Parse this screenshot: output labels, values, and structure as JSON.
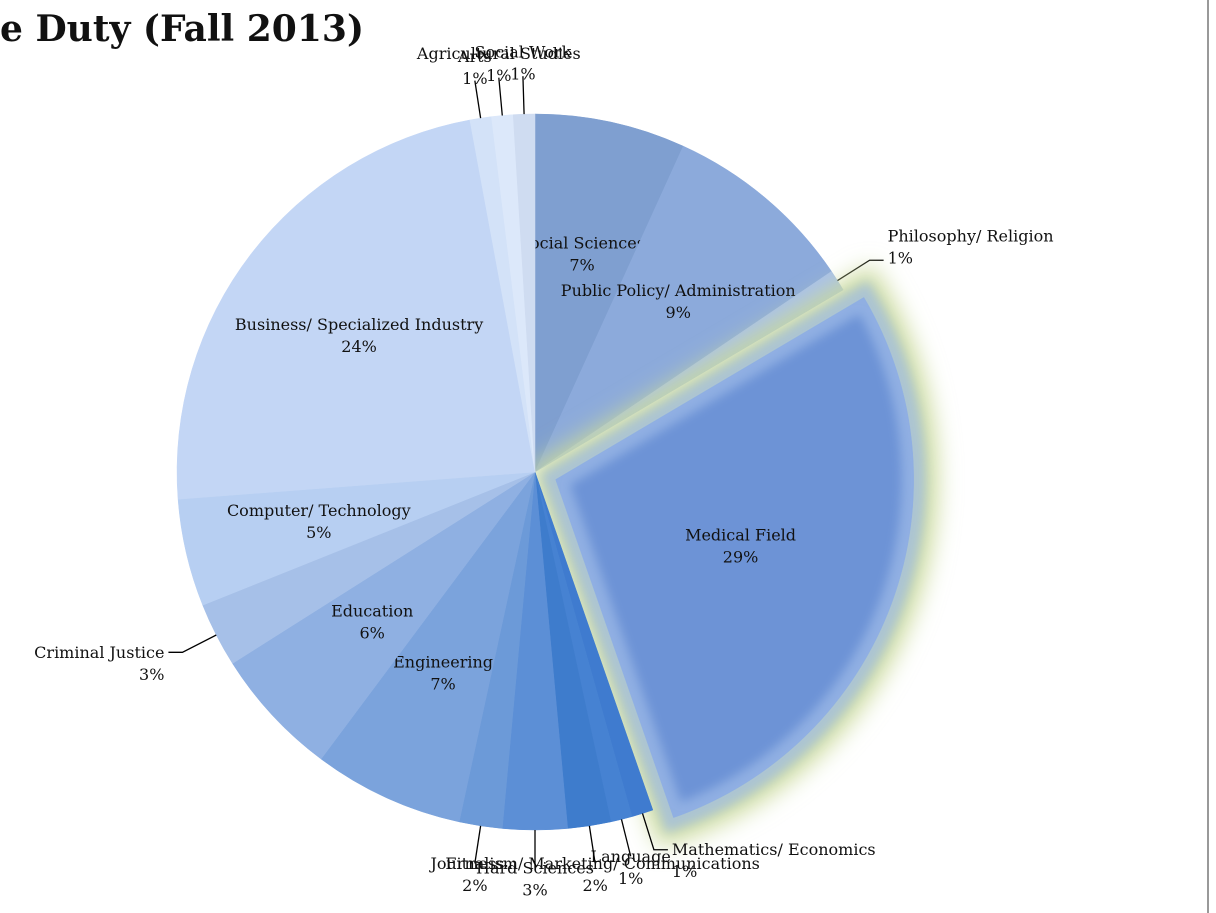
{
  "chart_data": {
    "type": "pie",
    "title": "e Duty (Fall 2013)",
    "categories": [
      "Social Sciences",
      "Public Policy/ Administration",
      "Philosophy/ Religion",
      "Medical Field",
      "Mathematics/ Economics",
      "Language",
      "Journalism/ Marketing/ Communications",
      "Hard Sciences",
      "Fitness",
      "Engineering",
      "Education",
      "Criminal Justice",
      "Computer/ Technology",
      "Business/ Specialized Industry",
      "Arts",
      "Agricultural Studies",
      "Social Work"
    ],
    "values": [
      7,
      9,
      1,
      29,
      1,
      1,
      2,
      3,
      2,
      7,
      6,
      3,
      5,
      24,
      1,
      1,
      1
    ],
    "value_labels": [
      "7%",
      "9%",
      "1%",
      "29%",
      "1%",
      "1%",
      "2%",
      "3%",
      "2%",
      "7%",
      "6%",
      "3%",
      "5%",
      "24%",
      "1%",
      "1%",
      "1%"
    ],
    "colors": [
      "#7f9fd0",
      "#8caadb",
      "#a9c1ea",
      "#6d93d6",
      "#3f7bcf",
      "#4682d2",
      "#3e7ccc",
      "#5c8fd6",
      "#6c9ad8",
      "#7ba3dc",
      "#8fb0e2",
      "#a6c0e8",
      "#b7cff2",
      "#c3d6f5",
      "#d3e2f8",
      "#dce8fa",
      "#cfdcf1"
    ]
  }
}
